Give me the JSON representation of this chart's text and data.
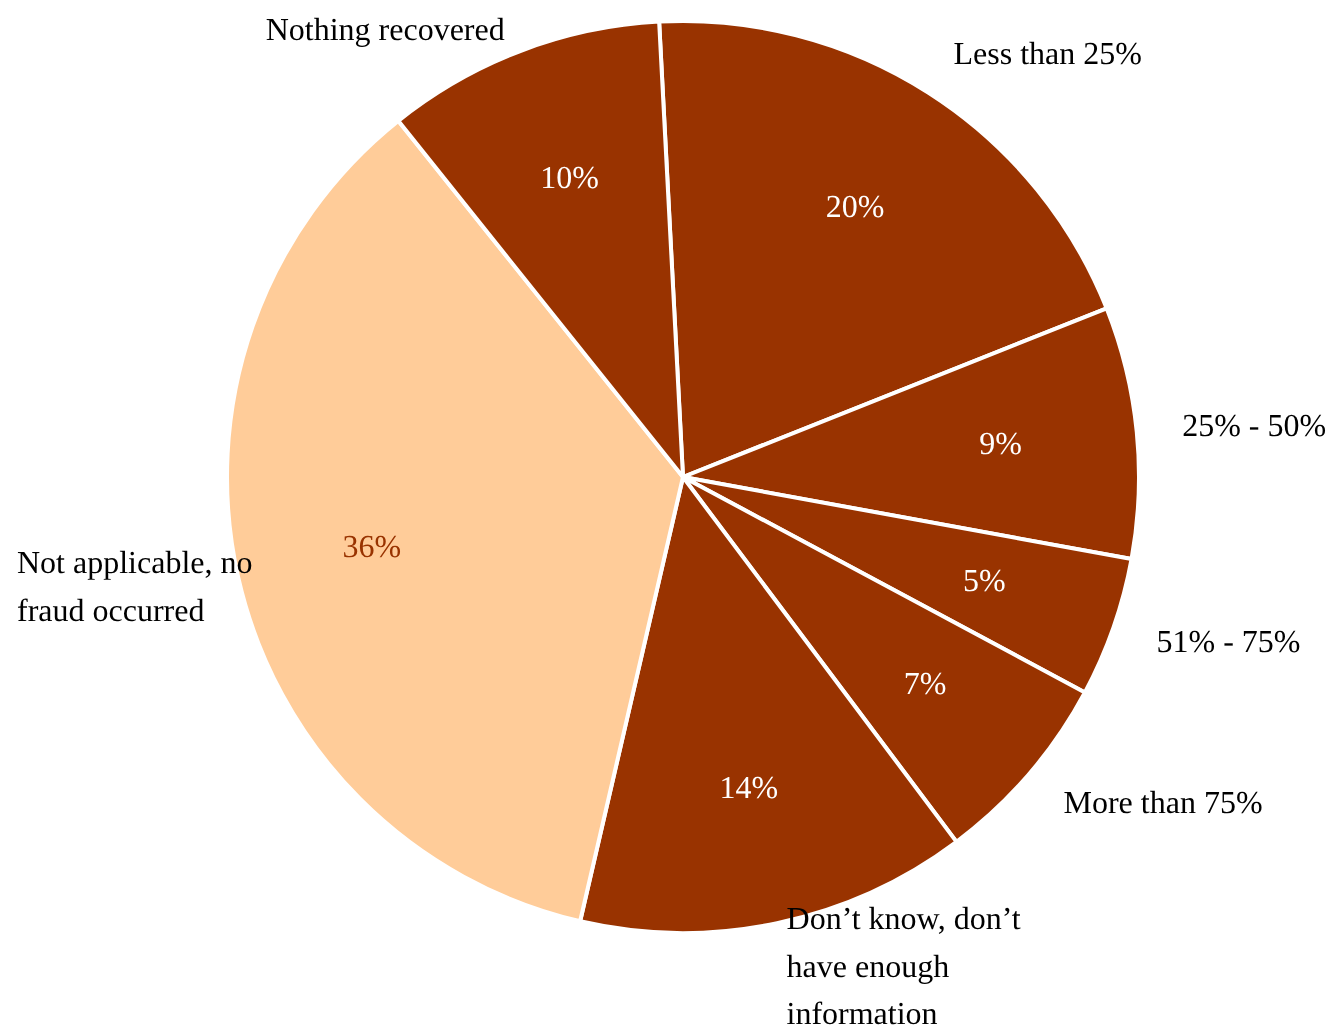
{
  "chart_data": {
    "type": "pie",
    "categories": [
      "Less than 25%",
      "25% - 50%",
      "51% - 75%",
      "More than 75%",
      "Don’t know, don’t have enough information",
      "Not applicable, no fraud occurred",
      "Nothing recovered"
    ],
    "values": [
      20,
      9,
      5,
      7,
      14,
      36,
      10
    ],
    "colors": [
      "#993300",
      "#993300",
      "#993300",
      "#993300",
      "#993300",
      "#ffcc99",
      "#993300"
    ],
    "value_labels": [
      "20%",
      "9%",
      "5%",
      "7%",
      "14%",
      "36%",
      "10%"
    ]
  }
}
